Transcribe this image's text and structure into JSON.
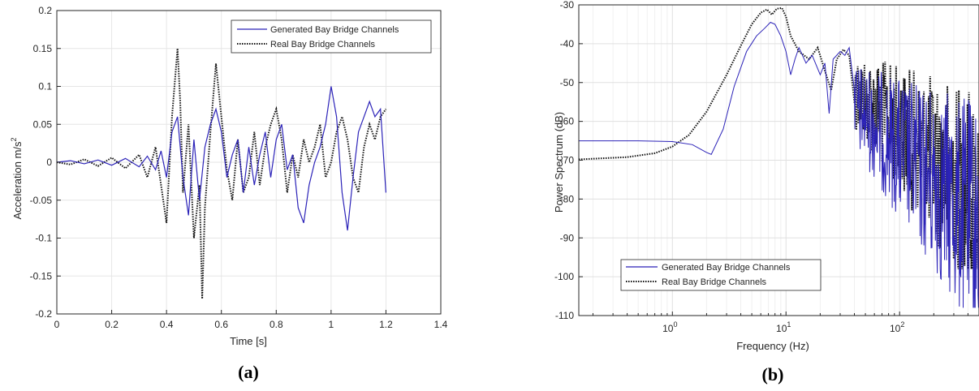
{
  "colors": {
    "generated": "#2b22b8",
    "real": "#111111",
    "grid": "#e6e6e6",
    "axis": "#262626"
  },
  "chart_data": [
    {
      "type": "line",
      "panel_label": "(a)",
      "xlabel": "Time [s]",
      "ylabel": "Acceleration m/s",
      "ylabel_superscript": "2",
      "xlim": [
        0,
        1.4
      ],
      "ylim": [
        -0.2,
        0.2
      ],
      "xticks": [
        0,
        0.2,
        0.4,
        0.6,
        0.8,
        1,
        1.2,
        1.4
      ],
      "xtick_labels": [
        "0",
        "0.2",
        "0.4",
        "0.6",
        "0.8",
        "1",
        "1.2",
        "1.4"
      ],
      "yticks": [
        -0.2,
        -0.15,
        -0.1,
        -0.05,
        0,
        0.05,
        0.1,
        0.15,
        0.2
      ],
      "ytick_labels": [
        "-0.2",
        "-0.15",
        "-0.1",
        "-0.05",
        "0",
        "0.05",
        "0.1",
        "0.15",
        "0.2"
      ],
      "grid": true,
      "legend_position": "top-right",
      "series": [
        {
          "name": "Generated Bay Bridge Channels",
          "style": "solid",
          "x": [
            0,
            0.05,
            0.1,
            0.15,
            0.2,
            0.25,
            0.3,
            0.33,
            0.36,
            0.38,
            0.4,
            0.42,
            0.44,
            0.46,
            0.48,
            0.5,
            0.52,
            0.54,
            0.56,
            0.58,
            0.6,
            0.62,
            0.64,
            0.66,
            0.68,
            0.7,
            0.72,
            0.74,
            0.76,
            0.78,
            0.8,
            0.82,
            0.84,
            0.86,
            0.88,
            0.9,
            0.92,
            0.94,
            0.96,
            0.98,
            1.0,
            1.02,
            1.04,
            1.06,
            1.08,
            1.1,
            1.12,
            1.14,
            1.16,
            1.18,
            1.2
          ],
          "y": [
            0,
            0.002,
            -0.002,
            0.003,
            -0.004,
            0.005,
            -0.006,
            0.008,
            -0.01,
            0.015,
            -0.02,
            0.04,
            0.06,
            -0.02,
            -0.07,
            0.03,
            -0.05,
            0.02,
            0.05,
            0.07,
            0.04,
            -0.02,
            0.01,
            0.03,
            -0.04,
            0.02,
            -0.03,
            0.01,
            0.04,
            -0.02,
            0.03,
            0.05,
            -0.01,
            0.01,
            -0.06,
            -0.08,
            -0.03,
            0.0,
            0.02,
            0.05,
            0.1,
            0.06,
            -0.04,
            -0.09,
            -0.02,
            0.04,
            0.06,
            0.08,
            0.06,
            0.07,
            -0.04
          ]
        },
        {
          "name": "Real Bay Bridge Channels",
          "style": "dotted",
          "x": [
            0,
            0.05,
            0.1,
            0.15,
            0.2,
            0.25,
            0.3,
            0.33,
            0.36,
            0.38,
            0.4,
            0.42,
            0.44,
            0.45,
            0.46,
            0.48,
            0.5,
            0.52,
            0.53,
            0.54,
            0.56,
            0.58,
            0.6,
            0.62,
            0.64,
            0.66,
            0.68,
            0.7,
            0.72,
            0.74,
            0.76,
            0.78,
            0.8,
            0.82,
            0.84,
            0.86,
            0.88,
            0.9,
            0.92,
            0.94,
            0.96,
            0.98,
            1.0,
            1.02,
            1.04,
            1.06,
            1.08,
            1.1,
            1.12,
            1.14,
            1.16,
            1.18,
            1.2
          ],
          "y": [
            0,
            -0.003,
            0.004,
            -0.005,
            0.006,
            -0.008,
            0.01,
            -0.02,
            0.02,
            -0.03,
            -0.08,
            0.06,
            0.15,
            0.08,
            -0.04,
            0.05,
            -0.1,
            -0.03,
            -0.18,
            -0.06,
            0.04,
            0.13,
            0.06,
            -0.01,
            -0.05,
            0.03,
            -0.04,
            -0.02,
            0.04,
            -0.03,
            0.02,
            0.05,
            0.07,
            0.03,
            -0.04,
            0.01,
            -0.02,
            0.03,
            0.0,
            0.02,
            0.05,
            -0.02,
            0.0,
            0.04,
            0.06,
            0.03,
            -0.02,
            -0.04,
            0.02,
            0.05,
            0.03,
            0.06,
            0.07
          ]
        }
      ]
    },
    {
      "type": "line",
      "panel_label": "(b)",
      "xlabel": "Frequency (Hz)",
      "ylabel": "Power Spectrum (dB)",
      "xscale": "log",
      "xlim": [
        0.15,
        500
      ],
      "ylim": [
        -110,
        -30
      ],
      "xticks": [
        1,
        10,
        100
      ],
      "xtick_labels": [
        {
          "base": "10",
          "exp": "0"
        },
        {
          "base": "10",
          "exp": "1"
        },
        {
          "base": "10",
          "exp": "2"
        }
      ],
      "yticks": [
        -110,
        -100,
        -90,
        -80,
        -70,
        -60,
        -50,
        -40,
        -30
      ],
      "ytick_labels": [
        "-110",
        "-100",
        "-90",
        "-80",
        "-70",
        "-60",
        "-50",
        "-40",
        "-30"
      ],
      "grid": true,
      "legend_position": "bottom-left",
      "series": [
        {
          "name": "Generated Bay Bridge Channels",
          "style": "solid",
          "x": [
            0.15,
            0.5,
            1.0,
            1.5,
            2.0,
            2.2,
            2.8,
            3.5,
            4.5,
            5.5,
            6.5,
            7.3,
            8.0,
            9.0,
            10.0,
            11.0,
            12.0,
            13.0,
            15.0,
            17.0,
            20.0,
            22.0,
            24.0,
            26.0,
            30.0,
            33.0,
            36.0,
            40.0
          ],
          "y": [
            -65,
            -65,
            -65.2,
            -66,
            -68,
            -68.5,
            -62,
            -51,
            -42,
            -38,
            -36,
            -34.5,
            -35,
            -38,
            -42,
            -48,
            -44,
            -41,
            -45,
            -43,
            -48,
            -45,
            -58,
            -44,
            -42,
            -43,
            -41,
            -52
          ]
        },
        {
          "name": "Real Bay Bridge Channels",
          "style": "dotted",
          "x": [
            0.15,
            0.4,
            0.7,
            1.0,
            1.4,
            2.0,
            3.0,
            4.0,
            5.0,
            6.0,
            6.8,
            7.5,
            8.3,
            9.2,
            10.0,
            11.0,
            13.0,
            16.0,
            19.0,
            22.0,
            25.0,
            28.0,
            32.0,
            36.0,
            40.0
          ],
          "y": [
            -69.8,
            -69.2,
            -68.2,
            -66.5,
            -63.5,
            -57.5,
            -48,
            -40.5,
            -35,
            -32,
            -31.2,
            -32.5,
            -31,
            -30.8,
            -33,
            -38,
            -42,
            -44,
            -41,
            -47,
            -52,
            -44,
            -41.5,
            -43,
            -55
          ]
        }
      ],
      "noise_tail": {
        "x_range": [
          40,
          500
        ],
        "generated_range_db": [
          -108,
          -45
        ],
        "real_range_db": [
          -98,
          -42
        ]
      }
    }
  ]
}
